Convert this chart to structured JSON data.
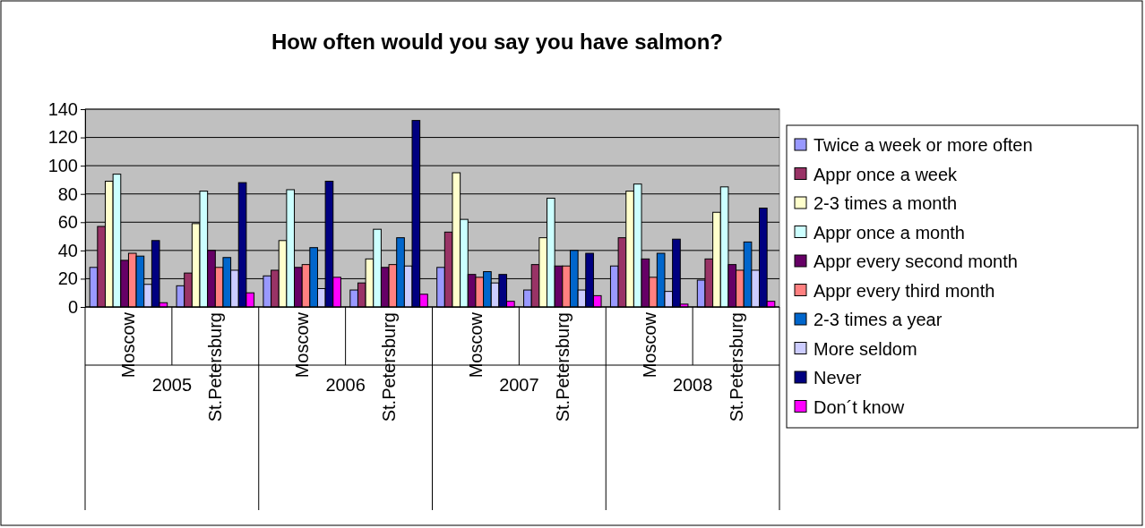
{
  "chart_data": {
    "type": "bar",
    "title": "How often would you say you have salmon?",
    "categories": [
      "Moscow",
      "St.Petersburg",
      "Moscow",
      "St.Petersburg",
      "Moscow",
      "St.Petersburg",
      "Moscow",
      "St.Petersburg"
    ],
    "annotations": [
      "2005",
      "2006",
      "2007",
      "2008"
    ],
    "series": [
      {
        "name": "Twice a week or more often",
        "color": "#9999ff",
        "values": [
          28,
          15,
          22,
          12,
          28,
          12,
          29,
          19
        ]
      },
      {
        "name": "Appr once a week",
        "color": "#993366",
        "values": [
          57,
          24,
          26,
          17,
          53,
          30,
          49,
          34
        ]
      },
      {
        "name": "2-3 times a month",
        "color": "#ffffcc",
        "values": [
          89,
          59,
          47,
          34,
          95,
          49,
          82,
          67
        ]
      },
      {
        "name": "Appr once a month",
        "color": "#ccffff",
        "values": [
          94,
          82,
          83,
          55,
          62,
          77,
          87,
          85
        ]
      },
      {
        "name": "Appr every second month",
        "color": "#660066",
        "values": [
          33,
          40,
          28,
          28,
          23,
          29,
          34,
          30
        ]
      },
      {
        "name": "Appr every third month",
        "color": "#ff8080",
        "values": [
          38,
          28,
          30,
          30,
          21,
          29,
          21,
          26
        ]
      },
      {
        "name": "2-3 times a year",
        "color": "#0066cc",
        "values": [
          36,
          35,
          42,
          49,
          25,
          40,
          38,
          46
        ]
      },
      {
        "name": "More seldom",
        "color": "#ccccff",
        "values": [
          16,
          26,
          13,
          29,
          17,
          12,
          11,
          26
        ]
      },
      {
        "name": "Never",
        "color": "#000080",
        "values": [
          47,
          88,
          89,
          132,
          23,
          38,
          48,
          70
        ]
      },
      {
        "name": "Don´t know",
        "color": "#ff00ff",
        "values": [
          3,
          10,
          21,
          9,
          4,
          8,
          2,
          4
        ]
      }
    ],
    "ylim": [
      0,
      140
    ],
    "yticks": [
      0,
      20,
      40,
      60,
      80,
      100,
      120,
      140
    ],
    "grid": "y",
    "legend": "right"
  }
}
